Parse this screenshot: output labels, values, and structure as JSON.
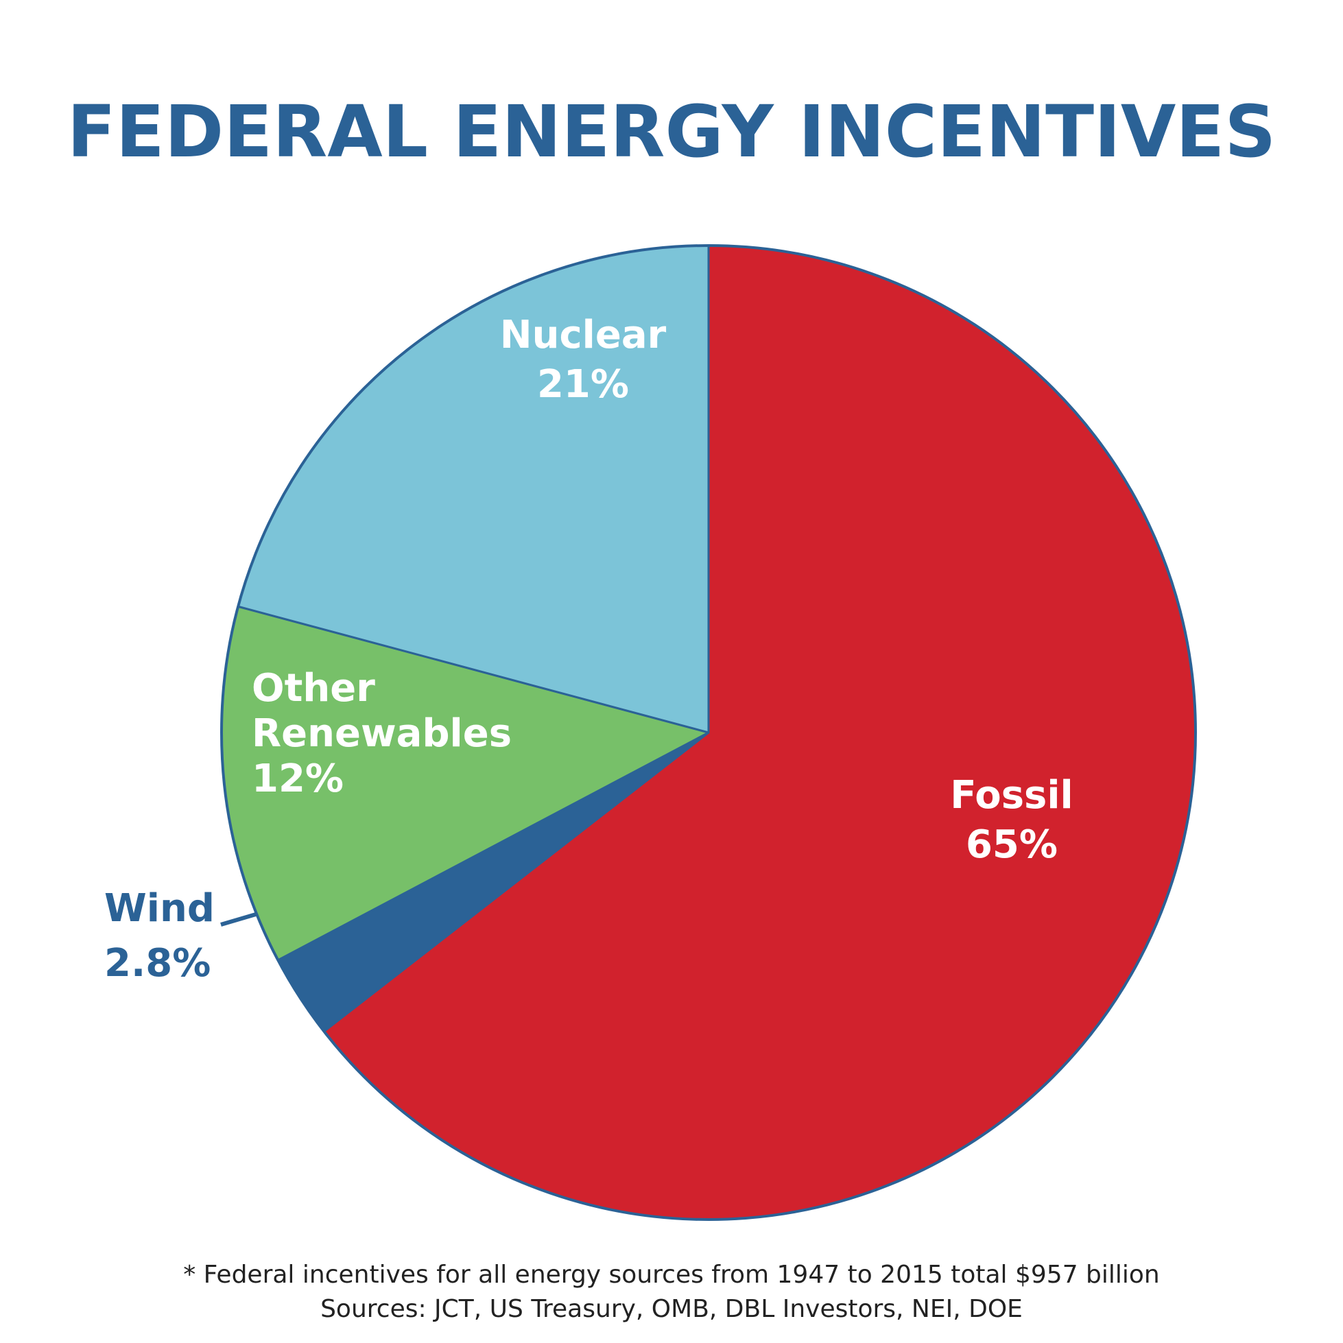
{
  "chart_data": {
    "type": "pie",
    "title": "FEDERAL ENERGY INCENTIVES",
    "slices": [
      {
        "name": "Fossil",
        "value": 65,
        "value_label": "65%",
        "color": "#d1222d"
      },
      {
        "name": "Wind",
        "value": 2.8,
        "value_label": "2.8%",
        "color": "#2b6296"
      },
      {
        "name": "Other Renewables",
        "value": 12,
        "value_label": "12%",
        "color": "#77c069",
        "label_lines": [
          "Other",
          "Renewables"
        ]
      },
      {
        "name": "Nuclear",
        "value": 21,
        "value_label": "21%",
        "color": "#7cc4d8"
      }
    ],
    "outline_color": "#2b6296",
    "legend": "none",
    "annotations": [
      "* Federal incentives for all energy sources from 1947 to 2015 total $957 billion",
      "Sources: JCT, US Treasury, OMB, DBL Investors, NEI, DOE"
    ]
  },
  "colors": {
    "title": "#2b6296",
    "inside_label": "#ffffff",
    "outside_label": "#2b6296",
    "footnote": "#222222"
  }
}
